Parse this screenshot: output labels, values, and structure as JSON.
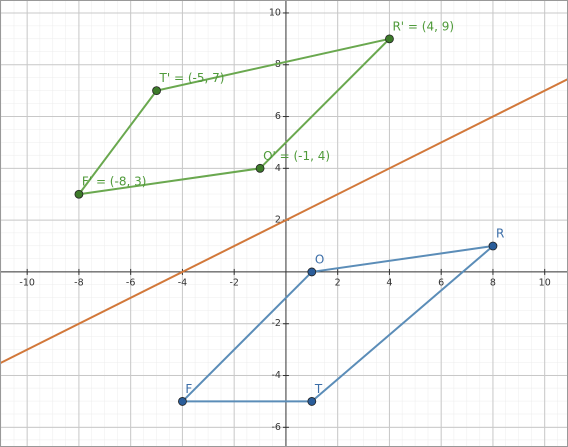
{
  "chart_data": {
    "type": "geometry",
    "xlim": [
      -11.05,
      10.9
    ],
    "ylim": [
      -6.76,
      10.5
    ],
    "xticks": [
      -10,
      -8,
      -6,
      -4,
      -2,
      2,
      4,
      6,
      8,
      10
    ],
    "yticks": [
      -6,
      -4,
      -2,
      2,
      4,
      6,
      8,
      10
    ],
    "grid": true,
    "lines": [
      {
        "color": "#d2783a",
        "slope": 0.5,
        "intercept": 2
      }
    ],
    "series": [
      {
        "color": "#5b8db8",
        "point_color": "#2a5d9a",
        "label_color": "#3c6ea8",
        "x": [
          -4,
          1,
          8,
          1
        ],
        "y": [
          -5,
          0,
          1,
          -5
        ],
        "labels": [
          "F",
          "O",
          "R",
          "T"
        ]
      },
      {
        "color": "#6aa84f",
        "point_color": "#3d7a2a",
        "label_color": "#4f9a3a",
        "x": [
          -8,
          -5,
          4,
          -1
        ],
        "y": [
          3,
          7,
          9,
          4
        ],
        "labels": [
          "F' = (-8, 3)",
          "T' = (-5, 7)",
          "R' = (4, 9)",
          "O' = (-1, 4)"
        ]
      }
    ]
  }
}
